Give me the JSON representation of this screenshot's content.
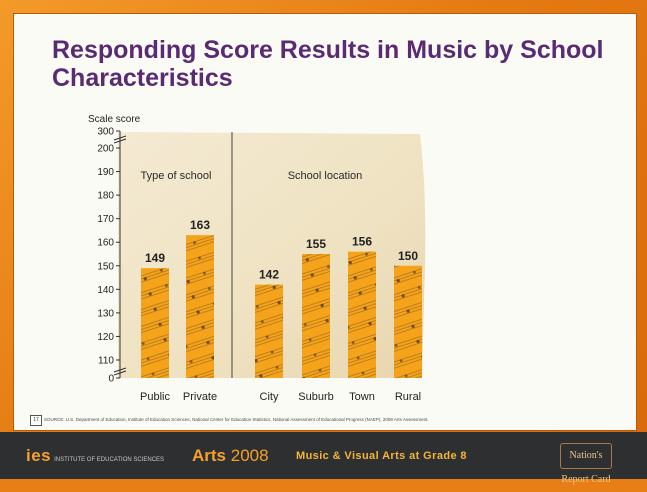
{
  "slide": {
    "title": "Responding Score Results in Music by School Characteristics",
    "page_number": "17",
    "source_note": "SOURCE: U.S. Department of Education, Institute of Education Sciences, National Center for Education Statistics, National Assessment of Educational Progress (NAEP), 2008 Arts Assessment."
  },
  "footer": {
    "logo": "ies",
    "logo_sub": "INSTITUTE OF EDUCATION SCIENCES",
    "arts_label": "Arts",
    "arts_year": "2008",
    "subtitle": "Music & Visual Arts at Grade 8",
    "nations_badge": "Nation's Report Card"
  },
  "colors": {
    "title": "#5a2a72",
    "bar": "#f6a31c",
    "footer_bg": "#2e2f31",
    "footer_text": "#f7a02a",
    "paper": "#f1e6cb"
  },
  "chart_data": {
    "type": "bar",
    "ylabel": "Scale score",
    "yticks": [
      0,
      110,
      120,
      130,
      140,
      150,
      160,
      170,
      180,
      190,
      200,
      300
    ],
    "ylim": [
      0,
      300
    ],
    "axis_break": "between 0 and 110, and between 200 and 300",
    "groups": [
      {
        "label": "Type of school",
        "categories": [
          "Public",
          "Private"
        ],
        "values": [
          149,
          163
        ]
      },
      {
        "label": "School location",
        "categories": [
          "City",
          "Suburb",
          "Town",
          "Rural"
        ],
        "values": [
          142,
          155,
          156,
          150
        ]
      }
    ],
    "data_labels": true,
    "grid": false
  }
}
